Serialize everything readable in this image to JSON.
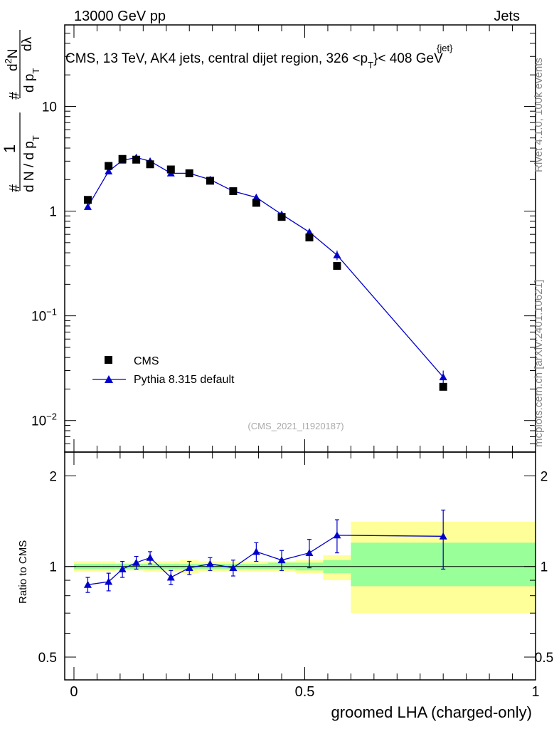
{
  "header": {
    "left": "13000 GeV pp",
    "right": "Jets",
    "title": "CMS, 13 TeV, AK4 jets, central dijet region, 326 <p",
    "title_sup": "{jet}",
    "title_sub": "T",
    "title_end": "}< 408 GeV"
  },
  "side": {
    "rivet": "Rivet 4.1.0,  100k events",
    "mcplots": "mcplots.cern.ch [arXiv:2401.10621]"
  },
  "watermark": "(CMS_2021_I1920187)",
  "ylabel_top": {
    "hash1": "#",
    "one": "1",
    "dn": "d N / d p",
    "dn_sub": "T",
    "hash2": "#",
    "d2n": "d",
    "d2n_sup": "2",
    "d2n_end": "N",
    "dp": "d p",
    "dp_sub": "T",
    "dlambda": "dλ"
  },
  "ylabel_ratio": "Ratio to CMS",
  "xlabel": "groomed LHA (charged-only)",
  "legend": {
    "cms": "CMS",
    "pythia": "Pythia 8.315 default"
  },
  "colors": {
    "cms": "#000000",
    "pythia": "#0000cc",
    "band_inner": "#99ff99",
    "band_outer": "#ffff99"
  },
  "chart_data": {
    "type": "scatter",
    "top": {
      "yscale": "log",
      "ylim": [
        0.005,
        60
      ],
      "yticks": [
        {
          "v": 0.01,
          "base": "10",
          "exp": "−2"
        },
        {
          "v": 0.1,
          "base": "10",
          "exp": "−1"
        },
        {
          "v": 1,
          "base": "1",
          "exp": ""
        },
        {
          "v": 10,
          "base": "10",
          "exp": ""
        }
      ],
      "series": [
        {
          "name": "CMS",
          "x": [
            0.03,
            0.075,
            0.105,
            0.135,
            0.165,
            0.21,
            0.25,
            0.295,
            0.345,
            0.395,
            0.45,
            0.51,
            0.57,
            0.8
          ],
          "y": [
            1.28,
            2.7,
            3.15,
            3.1,
            2.8,
            2.5,
            2.3,
            1.95,
            1.55,
            1.2,
            0.88,
            0.56,
            0.3,
            0.021
          ]
        },
        {
          "name": "Pythia 8.315 default",
          "x": [
            0.03,
            0.075,
            0.105,
            0.135,
            0.165,
            0.21,
            0.25,
            0.295,
            0.345,
            0.395,
            0.45,
            0.51,
            0.57,
            0.8
          ],
          "y": [
            1.1,
            2.4,
            3.05,
            3.25,
            3.0,
            2.3,
            2.3,
            2.0,
            1.55,
            1.35,
            0.93,
            0.63,
            0.38,
            0.026
          ],
          "yerr": [
            0.03,
            0.07,
            0.08,
            0.09,
            0.09,
            0.07,
            0.07,
            0.06,
            0.05,
            0.05,
            0.06,
            0.05,
            0.04,
            0.004
          ]
        }
      ]
    },
    "ratio": {
      "yscale": "log",
      "ylim": [
        0.42,
        2.4
      ],
      "yticks": [
        0.5,
        1,
        2
      ],
      "ytick_labels": [
        "0.5",
        "1",
        "2"
      ],
      "x": [
        0.03,
        0.075,
        0.105,
        0.135,
        0.165,
        0.21,
        0.25,
        0.295,
        0.345,
        0.395,
        0.45,
        0.51,
        0.57,
        0.8
      ],
      "y": [
        0.87,
        0.89,
        0.98,
        1.03,
        1.07,
        0.92,
        0.99,
        1.02,
        0.99,
        1.12,
        1.05,
        1.11,
        1.27,
        1.26
      ],
      "yerr": [
        0.05,
        0.06,
        0.06,
        0.05,
        0.05,
        0.05,
        0.05,
        0.05,
        0.06,
        0.08,
        0.08,
        0.12,
        0.16,
        0.28
      ],
      "bands": [
        {
          "x0": 0.0,
          "x1": 0.06,
          "inner": [
            0.98,
            1.02
          ],
          "outer": [
            0.96,
            1.04
          ]
        },
        {
          "x0": 0.06,
          "x1": 0.09,
          "inner": [
            0.98,
            1.02
          ],
          "outer": [
            0.96,
            1.04
          ]
        },
        {
          "x0": 0.09,
          "x1": 0.12,
          "inner": [
            0.98,
            1.02
          ],
          "outer": [
            0.97,
            1.03
          ]
        },
        {
          "x0": 0.12,
          "x1": 0.15,
          "inner": [
            0.98,
            1.02
          ],
          "outer": [
            0.97,
            1.03
          ]
        },
        {
          "x0": 0.15,
          "x1": 0.18,
          "inner": [
            0.98,
            1.02
          ],
          "outer": [
            0.96,
            1.04
          ]
        },
        {
          "x0": 0.18,
          "x1": 0.23,
          "inner": [
            0.98,
            1.02
          ],
          "outer": [
            0.96,
            1.04
          ]
        },
        {
          "x0": 0.23,
          "x1": 0.27,
          "inner": [
            0.98,
            1.02
          ],
          "outer": [
            0.95,
            1.05
          ]
        },
        {
          "x0": 0.27,
          "x1": 0.32,
          "inner": [
            0.98,
            1.02
          ],
          "outer": [
            0.96,
            1.04
          ]
        },
        {
          "x0": 0.32,
          "x1": 0.37,
          "inner": [
            0.98,
            1.02
          ],
          "outer": [
            0.96,
            1.04
          ]
        },
        {
          "x0": 0.37,
          "x1": 0.42,
          "inner": [
            0.98,
            1.02
          ],
          "outer": [
            0.96,
            1.04
          ]
        },
        {
          "x0": 0.42,
          "x1": 0.48,
          "inner": [
            0.98,
            1.03
          ],
          "outer": [
            0.96,
            1.04
          ]
        },
        {
          "x0": 0.48,
          "x1": 0.54,
          "inner": [
            0.97,
            1.03
          ],
          "outer": [
            0.95,
            1.05
          ]
        },
        {
          "x0": 0.54,
          "x1": 0.6,
          "inner": [
            0.95,
            1.05
          ],
          "outer": [
            0.9,
            1.09
          ]
        },
        {
          "x0": 0.6,
          "x1": 1.0,
          "inner": [
            0.86,
            1.2
          ],
          "outer": [
            0.7,
            1.41
          ]
        }
      ]
    },
    "xlim": [
      -0.02,
      1.0
    ],
    "xticks": [
      0,
      0.5,
      1
    ],
    "xtick_labels": [
      "0",
      "0.5",
      "1"
    ]
  }
}
